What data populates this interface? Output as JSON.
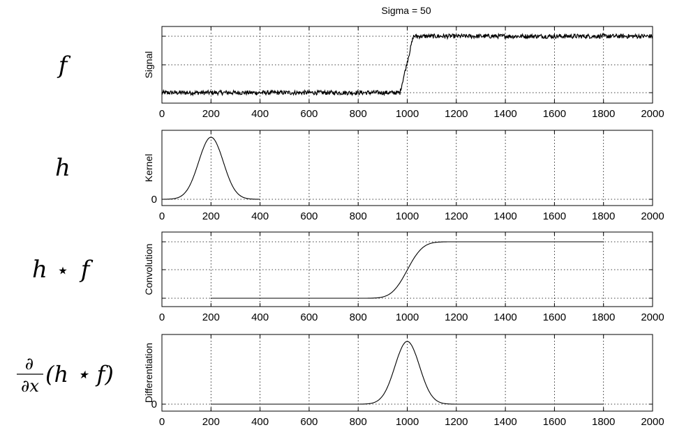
{
  "figure": {
    "title": "Sigma = 50"
  },
  "row_labels": {
    "f": "f",
    "h": "h",
    "conv_h": "h",
    "conv_star": "⋆",
    "conv_f": "f",
    "diff_num": "∂",
    "diff_den": "∂x",
    "diff_rest": "(h ⋆ f)"
  },
  "chart_data": [
    {
      "type": "line",
      "name": "signal",
      "ylabel": "Signal",
      "xlim": [
        0,
        2000
      ],
      "ylim": [
        0,
        1
      ],
      "xticks": [
        0,
        200,
        400,
        600,
        800,
        1000,
        1200,
        1400,
        1600,
        1800,
        2000
      ],
      "ytick_labels": [
        "",
        "",
        ""
      ],
      "grid": true,
      "x": [
        0,
        970,
        1025,
        2000
      ],
      "y": [
        0.12,
        0.12,
        0.88,
        0.88
      ],
      "noise_amplitude": 0.03
    },
    {
      "type": "line",
      "name": "kernel",
      "ylabel": "Kernel",
      "xlim": [
        0,
        2000
      ],
      "ylim": [
        -0.05,
        1.05
      ],
      "xticks": [
        0,
        200,
        400,
        600,
        800,
        1000,
        1200,
        1400,
        1600,
        1800,
        2000
      ],
      "ytick_labels": [
        "0"
      ],
      "grid": true,
      "gaussian": {
        "center": 200,
        "sigma": 50,
        "x_start": 0,
        "x_end": 400,
        "peak": 0.82
      }
    },
    {
      "type": "line",
      "name": "convolution",
      "ylabel": "Convolution",
      "xlim": [
        0,
        2000
      ],
      "ylim": [
        0,
        1
      ],
      "xticks": [
        0,
        200,
        400,
        600,
        800,
        1000,
        1200,
        1400,
        1600,
        1800,
        2000
      ],
      "ytick_labels": [
        "",
        "",
        ""
      ],
      "grid": true,
      "sigmoid": {
        "center": 1000,
        "sigma": 50,
        "x_start": 200,
        "x_end": 1800,
        "low": 0.0,
        "high": 1.0
      }
    },
    {
      "type": "line",
      "name": "differentiation",
      "ylabel": "Differentiation",
      "xlim": [
        0,
        2000
      ],
      "ylim": [
        -0.05,
        1.05
      ],
      "xticks": [
        0,
        200,
        400,
        600,
        800,
        1000,
        1200,
        1400,
        1600,
        1800,
        2000
      ],
      "ytick_labels": [
        "0"
      ],
      "grid": true,
      "gaussian": {
        "center": 1000,
        "sigma": 50,
        "x_start": 200,
        "x_end": 1800,
        "peak": 0.78
      }
    }
  ]
}
